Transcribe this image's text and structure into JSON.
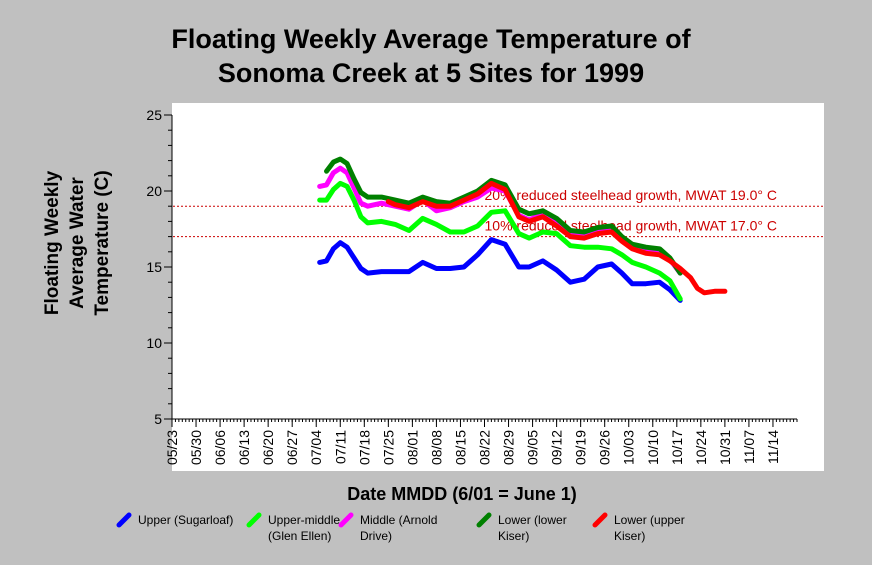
{
  "chart_data": {
    "type": "line",
    "title_lines": [
      "Floating Weekly Average Temperature of",
      "Sonoma Creek at 5 Sites for 1999"
    ],
    "xlabel": "Date MMDD (6/01 = June 1)",
    "ylabel_lines": [
      "Floating Weekly",
      "Average Water",
      "Temperature (C)"
    ],
    "ylim": [
      5,
      25
    ],
    "yticks": [
      5,
      10,
      15,
      20,
      25
    ],
    "xlim": [
      "1999-05-23",
      "1999-11-21"
    ],
    "xticks": [
      {
        "date": "1999-05-23",
        "label": "05/23"
      },
      {
        "date": "1999-05-30",
        "label": "05/30"
      },
      {
        "date": "1999-06-06",
        "label": "06/06"
      },
      {
        "date": "1999-06-13",
        "label": "06/13"
      },
      {
        "date": "1999-06-20",
        "label": "06/20"
      },
      {
        "date": "1999-06-27",
        "label": "06/27"
      },
      {
        "date": "1999-07-04",
        "label": "07/04"
      },
      {
        "date": "1999-07-11",
        "label": "07/11"
      },
      {
        "date": "1999-07-18",
        "label": "07/18"
      },
      {
        "date": "1999-07-25",
        "label": "07/25"
      },
      {
        "date": "1999-08-01",
        "label": "08/01"
      },
      {
        "date": "1999-08-08",
        "label": "08/08"
      },
      {
        "date": "1999-08-15",
        "label": "08/15"
      },
      {
        "date": "1999-08-22",
        "label": "08/22"
      },
      {
        "date": "1999-08-29",
        "label": "08/29"
      },
      {
        "date": "1999-09-05",
        "label": "09/05"
      },
      {
        "date": "1999-09-12",
        "label": "09/12"
      },
      {
        "date": "1999-09-19",
        "label": "09/19"
      },
      {
        "date": "1999-09-26",
        "label": "09/26"
      },
      {
        "date": "1999-10-03",
        "label": "10/03"
      },
      {
        "date": "1999-10-10",
        "label": "10/10"
      },
      {
        "date": "1999-10-17",
        "label": "10/17"
      },
      {
        "date": "1999-10-24",
        "label": "10/24"
      },
      {
        "date": "1999-10-31",
        "label": "10/31"
      },
      {
        "date": "1999-11-07",
        "label": "11/07"
      },
      {
        "date": "1999-11-14",
        "label": "11/14"
      }
    ],
    "grid": false,
    "reference_lines": [
      {
        "y": 19.0,
        "label": "20% reduced steelhead growth, MWAT 19.0° C",
        "color": "#cc0000"
      },
      {
        "y": 17.0,
        "label": "10% reduced steelhead growth, MWAT 17.0° C",
        "color": "#cc0000"
      }
    ],
    "legend_position": "bottom",
    "series": [
      {
        "name": "Upper (Sugarloaf)",
        "color": "#0000ff",
        "points": [
          [
            "1999-07-05",
            15.3
          ],
          [
            "1999-07-07",
            15.4
          ],
          [
            "1999-07-09",
            16.2
          ],
          [
            "1999-07-11",
            16.6
          ],
          [
            "1999-07-13",
            16.3
          ],
          [
            "1999-07-15",
            15.6
          ],
          [
            "1999-07-17",
            14.9
          ],
          [
            "1999-07-19",
            14.6
          ],
          [
            "1999-07-23",
            14.7
          ],
          [
            "1999-07-27",
            14.7
          ],
          [
            "1999-07-31",
            14.7
          ],
          [
            "1999-08-04",
            15.3
          ],
          [
            "1999-08-08",
            14.9
          ],
          [
            "1999-08-12",
            14.9
          ],
          [
            "1999-08-16",
            15.0
          ],
          [
            "1999-08-20",
            15.8
          ],
          [
            "1999-08-24",
            16.8
          ],
          [
            "1999-08-28",
            16.5
          ],
          [
            "1999-09-01",
            15.0
          ],
          [
            "1999-09-04",
            15.0
          ],
          [
            "1999-09-08",
            15.4
          ],
          [
            "1999-09-12",
            14.8
          ],
          [
            "1999-09-16",
            14.0
          ],
          [
            "1999-09-20",
            14.2
          ],
          [
            "1999-09-24",
            15.0
          ],
          [
            "1999-09-28",
            15.2
          ],
          [
            "1999-10-01",
            14.6
          ],
          [
            "1999-10-04",
            13.9
          ],
          [
            "1999-10-08",
            13.9
          ],
          [
            "1999-10-12",
            14.0
          ],
          [
            "1999-10-15",
            13.5
          ],
          [
            "1999-10-18",
            12.8
          ]
        ]
      },
      {
        "name": "Upper-middle (Glen Ellen)",
        "color": "#00ff00",
        "points": [
          [
            "1999-07-05",
            19.4
          ],
          [
            "1999-07-07",
            19.4
          ],
          [
            "1999-07-09",
            20.1
          ],
          [
            "1999-07-11",
            20.5
          ],
          [
            "1999-07-13",
            20.3
          ],
          [
            "1999-07-15",
            19.4
          ],
          [
            "1999-07-17",
            18.3
          ],
          [
            "1999-07-19",
            17.9
          ],
          [
            "1999-07-23",
            18.0
          ],
          [
            "1999-07-27",
            17.8
          ],
          [
            "1999-07-31",
            17.4
          ],
          [
            "1999-08-04",
            18.2
          ],
          [
            "1999-08-08",
            17.8
          ],
          [
            "1999-08-12",
            17.3
          ],
          [
            "1999-08-16",
            17.3
          ],
          [
            "1999-08-20",
            17.7
          ],
          [
            "1999-08-24",
            18.6
          ],
          [
            "1999-08-28",
            18.7
          ],
          [
            "1999-09-01",
            17.2
          ],
          [
            "1999-09-04",
            16.9
          ],
          [
            "1999-09-08",
            17.3
          ],
          [
            "1999-09-12",
            17.2
          ],
          [
            "1999-09-16",
            16.4
          ],
          [
            "1999-09-20",
            16.3
          ],
          [
            "1999-09-24",
            16.3
          ],
          [
            "1999-09-28",
            16.2
          ],
          [
            "1999-10-01",
            15.8
          ],
          [
            "1999-10-04",
            15.3
          ],
          [
            "1999-10-08",
            15.0
          ],
          [
            "1999-10-12",
            14.6
          ],
          [
            "1999-10-15",
            14.1
          ],
          [
            "1999-10-18",
            12.9
          ]
        ]
      },
      {
        "name": "Middle (Arnold Drive)",
        "color": "#ff00ff",
        "points": [
          [
            "1999-07-05",
            20.3
          ],
          [
            "1999-07-07",
            20.4
          ],
          [
            "1999-07-09",
            21.2
          ],
          [
            "1999-07-11",
            21.5
          ],
          [
            "1999-07-13",
            21.2
          ],
          [
            "1999-07-15",
            20.2
          ],
          [
            "1999-07-17",
            19.2
          ],
          [
            "1999-07-19",
            19.0
          ],
          [
            "1999-07-23",
            19.2
          ],
          [
            "1999-07-27",
            19.0
          ],
          [
            "1999-07-31",
            18.8
          ],
          [
            "1999-08-04",
            19.4
          ],
          [
            "1999-08-08",
            18.7
          ],
          [
            "1999-08-12",
            18.9
          ],
          [
            "1999-08-16",
            19.3
          ],
          [
            "1999-08-20",
            19.6
          ],
          [
            "1999-08-24",
            20.2
          ],
          [
            "1999-08-28",
            20.0
          ],
          [
            "1999-09-01",
            18.4
          ],
          [
            "1999-09-04",
            18.1
          ],
          [
            "1999-09-08",
            18.5
          ],
          [
            "1999-09-12",
            18.0
          ],
          [
            "1999-09-16",
            17.2
          ],
          [
            "1999-09-20",
            17.0
          ],
          [
            "1999-09-24",
            17.3
          ],
          [
            "1999-09-28",
            17.4
          ],
          [
            "1999-10-01",
            16.8
          ],
          [
            "1999-10-04",
            16.3
          ],
          [
            "1999-10-08",
            16.1
          ],
          [
            "1999-10-12",
            16.0
          ],
          [
            "1999-10-15",
            15.5
          ],
          [
            "1999-10-18",
            14.6
          ]
        ]
      },
      {
        "name": "Lower (lower Kiser)",
        "color": "#008000",
        "points": [
          [
            "1999-07-07",
            21.3
          ],
          [
            "1999-07-09",
            21.9
          ],
          [
            "1999-07-11",
            22.1
          ],
          [
            "1999-07-13",
            21.8
          ],
          [
            "1999-07-15",
            20.8
          ],
          [
            "1999-07-17",
            19.9
          ],
          [
            "1999-07-19",
            19.6
          ],
          [
            "1999-07-23",
            19.6
          ],
          [
            "1999-07-27",
            19.4
          ],
          [
            "1999-07-31",
            19.2
          ],
          [
            "1999-08-04",
            19.6
          ],
          [
            "1999-08-08",
            19.3
          ],
          [
            "1999-08-12",
            19.2
          ],
          [
            "1999-08-16",
            19.6
          ],
          [
            "1999-08-20",
            20.0
          ],
          [
            "1999-08-24",
            20.7
          ],
          [
            "1999-08-28",
            20.4
          ],
          [
            "1999-09-01",
            18.8
          ],
          [
            "1999-09-04",
            18.5
          ],
          [
            "1999-09-08",
            18.7
          ],
          [
            "1999-09-12",
            18.2
          ],
          [
            "1999-09-16",
            17.4
          ],
          [
            "1999-09-20",
            17.3
          ],
          [
            "1999-09-24",
            17.6
          ],
          [
            "1999-09-28",
            17.7
          ],
          [
            "1999-10-01",
            17.0
          ],
          [
            "1999-10-04",
            16.5
          ],
          [
            "1999-10-08",
            16.3
          ],
          [
            "1999-10-12",
            16.2
          ],
          [
            "1999-10-15",
            15.6
          ],
          [
            "1999-10-18",
            14.6
          ]
        ]
      },
      {
        "name": "Lower (upper Kiser)",
        "color": "#ff0000",
        "points": [
          [
            "1999-07-25",
            19.3
          ],
          [
            "1999-07-27",
            19.1
          ],
          [
            "1999-07-31",
            18.9
          ],
          [
            "1999-08-04",
            19.3
          ],
          [
            "1999-08-08",
            19.0
          ],
          [
            "1999-08-12",
            19.0
          ],
          [
            "1999-08-16",
            19.4
          ],
          [
            "1999-08-20",
            19.8
          ],
          [
            "1999-08-24",
            20.5
          ],
          [
            "1999-08-28",
            20.1
          ],
          [
            "1999-09-01",
            18.3
          ],
          [
            "1999-09-04",
            18.0
          ],
          [
            "1999-09-08",
            18.3
          ],
          [
            "1999-09-12",
            17.7
          ],
          [
            "1999-09-16",
            17.0
          ],
          [
            "1999-09-20",
            16.9
          ],
          [
            "1999-09-24",
            17.2
          ],
          [
            "1999-09-28",
            17.3
          ],
          [
            "1999-10-01",
            16.7
          ],
          [
            "1999-10-04",
            16.2
          ],
          [
            "1999-10-08",
            15.9
          ],
          [
            "1999-10-12",
            15.8
          ],
          [
            "1999-10-15",
            15.4
          ],
          [
            "1999-10-18",
            14.9
          ],
          [
            "1999-10-21",
            14.3
          ],
          [
            "1999-10-23",
            13.6
          ],
          [
            "1999-10-25",
            13.3
          ],
          [
            "1999-10-28",
            13.4
          ],
          [
            "1999-10-31",
            13.4
          ]
        ]
      }
    ],
    "legend": [
      {
        "label": "Upper (Sugarloaf)",
        "color": "#0000ff"
      },
      {
        "label": "Upper-middle (Glen Ellen)",
        "color": "#00ff00"
      },
      {
        "label": "Middle (Arnold Drive)",
        "color": "#ff00ff"
      },
      {
        "label": "Lower (lower Kiser)",
        "color": "#008000"
      },
      {
        "label": "Lower (upper Kiser)",
        "color": "#ff0000"
      }
    ]
  }
}
